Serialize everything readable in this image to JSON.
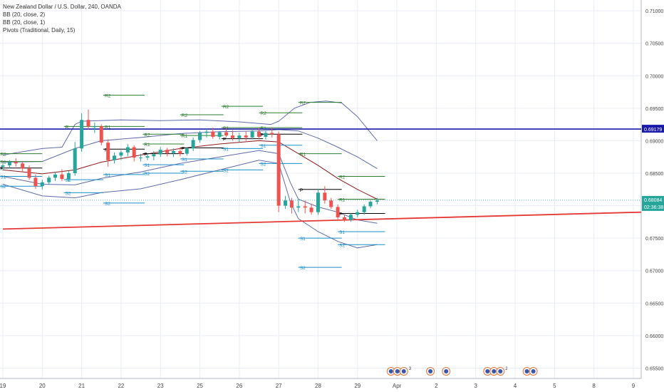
{
  "legend": {
    "title": "New Zealand Dollar / U.S. Dollar, 240, OANDA",
    "indicators": [
      "BB (20, close, 2)",
      "BB (20, close, 1)",
      "Pivots (Traditional, Daily, 15)"
    ]
  },
  "colors": {
    "up": "#26a69a",
    "down": "#ef5350",
    "bb_outer": "#2b3a8f",
    "bb_mid": "#8b1a1a",
    "grid": "#e9eef5",
    "resistance_line": "#1a1aaa",
    "trend_line": "#e53935",
    "pivot_r": "#2e7d32",
    "pivot_s": "#2e7d32",
    "pivot_p": "#000000",
    "price_label_bg": "#26a69a",
    "blue_label_bg": "#1a1aaa"
  },
  "chart_data": {
    "type": "candlestick",
    "x_ticks": [
      {
        "label": "19",
        "x": 0.0
      },
      {
        "label": "20",
        "x": 1.0
      },
      {
        "label": "21",
        "x": 2.0
      },
      {
        "label": "22",
        "x": 3.0
      },
      {
        "label": "23",
        "x": 4.0
      },
      {
        "label": "25",
        "x": 5.0
      },
      {
        "label": "26",
        "x": 6.0
      },
      {
        "label": "27",
        "x": 7.0
      },
      {
        "label": "28",
        "x": 8.0
      },
      {
        "label": "29",
        "x": 9.0
      },
      {
        "label": "Apr",
        "x": 10.0
      },
      {
        "label": "2",
        "x": 11.0
      },
      {
        "label": "3",
        "x": 12.0
      },
      {
        "label": "4",
        "x": 13.0
      },
      {
        "label": "5",
        "x": 14.0
      },
      {
        "label": "8",
        "x": 15.0
      },
      {
        "label": "9",
        "x": 16.0
      }
    ],
    "x_range": [
      0.0,
      16.2
    ],
    "y_range": [
      0.6545,
      0.711
    ],
    "y_ticks": [
      "0.71000",
      "0.70500",
      "0.70000",
      "0.69500",
      "0.69000",
      "0.68500",
      "0.68000",
      "0.67500",
      "0.67000",
      "0.66500",
      "0.66000",
      "0.65500"
    ],
    "candles": [
      {
        "x": 0.0,
        "o": 0.686,
        "h": 0.6866,
        "l": 0.6854,
        "c": 0.6862
      },
      {
        "x": 0.17,
        "o": 0.6862,
        "h": 0.687,
        "l": 0.6857,
        "c": 0.6867
      },
      {
        "x": 0.33,
        "o": 0.6867,
        "h": 0.6873,
        "l": 0.686,
        "c": 0.6865
      },
      {
        "x": 0.5,
        "o": 0.6865,
        "h": 0.6868,
        "l": 0.6852,
        "c": 0.6857
      },
      {
        "x": 0.67,
        "o": 0.6857,
        "h": 0.6862,
        "l": 0.684,
        "c": 0.6843
      },
      {
        "x": 0.83,
        "o": 0.6843,
        "h": 0.6848,
        "l": 0.6826,
        "c": 0.683
      },
      {
        "x": 1.0,
        "o": 0.683,
        "h": 0.684,
        "l": 0.6825,
        "c": 0.6836
      },
      {
        "x": 1.17,
        "o": 0.6836,
        "h": 0.6846,
        "l": 0.6832,
        "c": 0.6843
      },
      {
        "x": 1.33,
        "o": 0.6843,
        "h": 0.6852,
        "l": 0.6838,
        "c": 0.6848
      },
      {
        "x": 1.5,
        "o": 0.6848,
        "h": 0.6856,
        "l": 0.6838,
        "c": 0.6841
      },
      {
        "x": 1.67,
        "o": 0.6841,
        "h": 0.6853,
        "l": 0.6837,
        "c": 0.685
      },
      {
        "x": 1.83,
        "o": 0.685,
        "h": 0.6898,
        "l": 0.6846,
        "c": 0.6888
      },
      {
        "x": 2.0,
        "o": 0.6888,
        "h": 0.6942,
        "l": 0.6883,
        "c": 0.6932
      },
      {
        "x": 2.17,
        "o": 0.6932,
        "h": 0.6948,
        "l": 0.6917,
        "c": 0.6922
      },
      {
        "x": 2.33,
        "o": 0.6922,
        "h": 0.6928,
        "l": 0.6912,
        "c": 0.6922
      },
      {
        "x": 2.5,
        "o": 0.6922,
        "h": 0.6925,
        "l": 0.6893,
        "c": 0.6897
      },
      {
        "x": 2.67,
        "o": 0.6897,
        "h": 0.6902,
        "l": 0.686,
        "c": 0.687
      },
      {
        "x": 2.83,
        "o": 0.687,
        "h": 0.6882,
        "l": 0.6865,
        "c": 0.6877
      },
      {
        "x": 3.0,
        "o": 0.6877,
        "h": 0.6885,
        "l": 0.687,
        "c": 0.6882
      },
      {
        "x": 3.17,
        "o": 0.6882,
        "h": 0.6895,
        "l": 0.6876,
        "c": 0.689
      },
      {
        "x": 3.33,
        "o": 0.689,
        "h": 0.6893,
        "l": 0.6868,
        "c": 0.6874
      },
      {
        "x": 3.5,
        "o": 0.6874,
        "h": 0.688,
        "l": 0.6868,
        "c": 0.6874
      },
      {
        "x": 3.67,
        "o": 0.6874,
        "h": 0.688,
        "l": 0.687,
        "c": 0.6876
      },
      {
        "x": 3.83,
        "o": 0.6876,
        "h": 0.6884,
        "l": 0.687,
        "c": 0.6879
      },
      {
        "x": 4.0,
        "o": 0.6879,
        "h": 0.689,
        "l": 0.6875,
        "c": 0.6886
      },
      {
        "x": 4.17,
        "o": 0.6886,
        "h": 0.6889,
        "l": 0.6876,
        "c": 0.6881
      },
      {
        "x": 4.33,
        "o": 0.6881,
        "h": 0.6888,
        "l": 0.6875,
        "c": 0.6884
      },
      {
        "x": 4.5,
        "o": 0.6884,
        "h": 0.689,
        "l": 0.6876,
        "c": 0.688
      },
      {
        "x": 4.67,
        "o": 0.688,
        "h": 0.689,
        "l": 0.6877,
        "c": 0.6888
      },
      {
        "x": 4.83,
        "o": 0.6888,
        "h": 0.6905,
        "l": 0.6884,
        "c": 0.6901
      },
      {
        "x": 5.0,
        "o": 0.6901,
        "h": 0.6915,
        "l": 0.6897,
        "c": 0.6912
      },
      {
        "x": 5.17,
        "o": 0.6912,
        "h": 0.6918,
        "l": 0.6905,
        "c": 0.6914
      },
      {
        "x": 5.33,
        "o": 0.6914,
        "h": 0.692,
        "l": 0.6903,
        "c": 0.6906
      },
      {
        "x": 5.5,
        "o": 0.6906,
        "h": 0.6915,
        "l": 0.6902,
        "c": 0.6913
      },
      {
        "x": 5.67,
        "o": 0.6913,
        "h": 0.692,
        "l": 0.6905,
        "c": 0.6908
      },
      {
        "x": 5.83,
        "o": 0.6908,
        "h": 0.6916,
        "l": 0.69,
        "c": 0.6904
      },
      {
        "x": 6.0,
        "o": 0.6904,
        "h": 0.6912,
        "l": 0.6898,
        "c": 0.6908
      },
      {
        "x": 6.17,
        "o": 0.6908,
        "h": 0.6914,
        "l": 0.69,
        "c": 0.6905
      },
      {
        "x": 6.33,
        "o": 0.6905,
        "h": 0.6918,
        "l": 0.6902,
        "c": 0.6914
      },
      {
        "x": 6.5,
        "o": 0.6914,
        "h": 0.6919,
        "l": 0.6902,
        "c": 0.6906
      },
      {
        "x": 6.67,
        "o": 0.6906,
        "h": 0.6915,
        "l": 0.6902,
        "c": 0.6912
      },
      {
        "x": 6.83,
        "o": 0.6912,
        "h": 0.692,
        "l": 0.6905,
        "c": 0.691
      },
      {
        "x": 7.0,
        "o": 0.691,
        "h": 0.6914,
        "l": 0.679,
        "c": 0.68
      },
      {
        "x": 7.17,
        "o": 0.68,
        "h": 0.6815,
        "l": 0.6795,
        "c": 0.6808
      },
      {
        "x": 7.33,
        "o": 0.6808,
        "h": 0.6812,
        "l": 0.6788,
        "c": 0.6797
      },
      {
        "x": 7.5,
        "o": 0.6797,
        "h": 0.681,
        "l": 0.679,
        "c": 0.6799
      },
      {
        "x": 7.67,
        "o": 0.6799,
        "h": 0.6808,
        "l": 0.6788,
        "c": 0.6797
      },
      {
        "x": 7.83,
        "o": 0.6797,
        "h": 0.6803,
        "l": 0.6786,
        "c": 0.679
      },
      {
        "x": 8.0,
        "o": 0.679,
        "h": 0.6826,
        "l": 0.6786,
        "c": 0.682
      },
      {
        "x": 8.17,
        "o": 0.682,
        "h": 0.683,
        "l": 0.6803,
        "c": 0.6808
      },
      {
        "x": 8.33,
        "o": 0.6808,
        "h": 0.6812,
        "l": 0.6795,
        "c": 0.6798
      },
      {
        "x": 8.5,
        "o": 0.6798,
        "h": 0.6802,
        "l": 0.6778,
        "c": 0.6782
      },
      {
        "x": 8.67,
        "o": 0.6782,
        "h": 0.6786,
        "l": 0.6775,
        "c": 0.6778
      },
      {
        "x": 8.83,
        "o": 0.6778,
        "h": 0.6788,
        "l": 0.6775,
        "c": 0.6786
      },
      {
        "x": 9.0,
        "o": 0.6786,
        "h": 0.6794,
        "l": 0.6782,
        "c": 0.679
      },
      {
        "x": 9.17,
        "o": 0.679,
        "h": 0.6802,
        "l": 0.6786,
        "c": 0.6799
      },
      {
        "x": 9.33,
        "o": 0.6799,
        "h": 0.6808,
        "l": 0.6796,
        "c": 0.6806
      },
      {
        "x": 9.5,
        "o": 0.6806,
        "h": 0.6812,
        "l": 0.6802,
        "c": 0.6808
      }
    ],
    "bb_upper_outer": [
      [
        0.0,
        0.6878
      ],
      [
        0.5,
        0.6883
      ],
      [
        1.0,
        0.6888
      ],
      [
        1.5,
        0.689
      ],
      [
        1.83,
        0.6925
      ],
      [
        2.0,
        0.693
      ],
      [
        3.0,
        0.6932
      ],
      [
        4.0,
        0.6931
      ],
      [
        5.0,
        0.6932
      ],
      [
        6.0,
        0.6929
      ],
      [
        6.8,
        0.6925
      ],
      [
        7.0,
        0.693
      ],
      [
        7.4,
        0.695
      ],
      [
        7.8,
        0.6959
      ],
      [
        8.2,
        0.6961
      ],
      [
        8.6,
        0.6958
      ],
      [
        9.0,
        0.6937
      ],
      [
        9.5,
        0.69
      ]
    ],
    "bb_upper_inner": [
      [
        0.0,
        0.6867
      ],
      [
        1.0,
        0.6868
      ],
      [
        1.83,
        0.6888
      ],
      [
        2.5,
        0.69
      ],
      [
        3.5,
        0.6905
      ],
      [
        4.5,
        0.6911
      ],
      [
        5.5,
        0.6914
      ],
      [
        6.5,
        0.6915
      ],
      [
        7.0,
        0.6917
      ],
      [
        7.5,
        0.6915
      ],
      [
        8.0,
        0.6904
      ],
      [
        8.5,
        0.689
      ],
      [
        9.0,
        0.6875
      ],
      [
        9.5,
        0.6857
      ]
    ],
    "bb_mid": [
      [
        0.0,
        0.6855
      ],
      [
        1.0,
        0.6849
      ],
      [
        1.83,
        0.6855
      ],
      [
        2.5,
        0.6867
      ],
      [
        3.5,
        0.6878
      ],
      [
        4.5,
        0.6888
      ],
      [
        5.5,
        0.6895
      ],
      [
        6.5,
        0.69
      ],
      [
        7.0,
        0.6898
      ],
      [
        7.5,
        0.688
      ],
      [
        8.0,
        0.6862
      ],
      [
        8.5,
        0.6842
      ],
      [
        9.0,
        0.6825
      ],
      [
        9.5,
        0.681
      ]
    ],
    "bb_lower_inner": [
      [
        0.0,
        0.6845
      ],
      [
        1.0,
        0.6833
      ],
      [
        1.83,
        0.6832
      ],
      [
        2.5,
        0.6842
      ],
      [
        3.5,
        0.6852
      ],
      [
        4.5,
        0.6865
      ],
      [
        5.5,
        0.6875
      ],
      [
        6.5,
        0.6885
      ],
      [
        7.0,
        0.688
      ],
      [
        7.3,
        0.6835
      ],
      [
        7.5,
        0.681
      ],
      [
        8.0,
        0.6798
      ],
      [
        8.5,
        0.679
      ],
      [
        9.0,
        0.6778
      ],
      [
        9.5,
        0.6773
      ]
    ],
    "bb_lower_outer": [
      [
        0.0,
        0.6833
      ],
      [
        1.0,
        0.6815
      ],
      [
        1.83,
        0.6812
      ],
      [
        2.5,
        0.682
      ],
      [
        3.5,
        0.6826
      ],
      [
        4.5,
        0.684
      ],
      [
        5.5,
        0.6855
      ],
      [
        6.5,
        0.687
      ],
      [
        7.0,
        0.6865
      ],
      [
        7.3,
        0.6805
      ],
      [
        7.5,
        0.678
      ],
      [
        8.0,
        0.676
      ],
      [
        8.5,
        0.6745
      ],
      [
        9.0,
        0.6735
      ],
      [
        9.5,
        0.674
      ]
    ],
    "resistance_level": 0.69179,
    "trend_line": [
      [
        0.0,
        0.6764
      ],
      [
        16.2,
        0.679
      ]
    ],
    "pivot_sets": [
      {
        "x0": -0.1,
        "x1": 1.0,
        "levels": [
          {
            "label": "R2",
            "v": 0.688,
            "kind": "r"
          },
          {
            "label": "R1",
            "v": 0.6868,
            "kind": "r"
          },
          {
            "label": "P",
            "v": 0.6858,
            "kind": "p"
          },
          {
            "label": "S1",
            "v": 0.6845,
            "kind": "s"
          },
          {
            "label": "S2",
            "v": 0.683,
            "kind": "s"
          }
        ]
      },
      {
        "x0": 1.55,
        "x1": 2.55,
        "levels": [
          {
            "label": "R",
            "v": 0.6922,
            "kind": "r"
          },
          {
            "label": "S1",
            "v": 0.684,
            "kind": "s"
          },
          {
            "label": "S2",
            "v": 0.682,
            "kind": "s"
          }
        ]
      },
      {
        "x0": 2.55,
        "x1": 3.6,
        "levels": [
          {
            "label": "R2",
            "v": 0.697,
            "kind": "r"
          },
          {
            "label": "R1",
            "v": 0.6922,
            "kind": "r"
          },
          {
            "label": "P",
            "v": 0.6887,
            "kind": "p"
          },
          {
            "label": "S1",
            "v": 0.6848,
            "kind": "s"
          },
          {
            "label": "S2",
            "v": 0.6804,
            "kind": "s"
          }
        ]
      },
      {
        "x0": 3.55,
        "x1": 4.6,
        "levels": [
          {
            "label": "R2",
            "v": 0.691,
            "kind": "r"
          },
          {
            "label": "R1",
            "v": 0.6895,
            "kind": "r"
          },
          {
            "label": "P",
            "v": 0.688,
            "kind": "p"
          },
          {
            "label": "S1",
            "v": 0.6863,
            "kind": "s"
          },
          {
            "label": "S2",
            "v": 0.685,
            "kind": "s"
          }
        ]
      },
      {
        "x0": 4.5,
        "x1": 5.6,
        "levels": [
          {
            "label": "R2",
            "v": 0.694,
            "kind": "r"
          },
          {
            "label": "R1",
            "v": 0.6908,
            "kind": "r"
          },
          {
            "label": "P",
            "v": 0.6889,
            "kind": "p"
          },
          {
            "label": "S1",
            "v": 0.6872,
            "kind": "s"
          },
          {
            "label": "S2",
            "v": 0.6853,
            "kind": "s"
          }
        ]
      },
      {
        "x0": 5.55,
        "x1": 6.6,
        "levels": [
          {
            "label": "R2",
            "v": 0.6953,
            "kind": "r"
          },
          {
            "label": "R1",
            "v": 0.692,
            "kind": "r"
          },
          {
            "label": "P",
            "v": 0.6903,
            "kind": "p"
          },
          {
            "label": "S1",
            "v": 0.6888,
            "kind": "s"
          },
          {
            "label": "S2",
            "v": 0.6855,
            "kind": "s"
          }
        ]
      },
      {
        "x0": 6.5,
        "x1": 7.6,
        "levels": [
          {
            "label": "R2",
            "v": 0.6943,
            "kind": "r"
          },
          {
            "label": "R1",
            "v": 0.692,
            "kind": "r"
          },
          {
            "label": "P",
            "v": 0.691,
            "kind": "p"
          },
          {
            "label": "S1",
            "v": 0.6893,
            "kind": "s"
          },
          {
            "label": "S2",
            "v": 0.6865,
            "kind": "s"
          }
        ]
      },
      {
        "x0": 7.5,
        "x1": 8.6,
        "levels": [
          {
            "label": "R2",
            "v": 0.6959,
            "kind": "r"
          },
          {
            "label": "R1",
            "v": 0.688,
            "kind": "r"
          },
          {
            "label": "P",
            "v": 0.6825,
            "kind": "p"
          },
          {
            "label": "S1",
            "v": 0.675,
            "kind": "s"
          },
          {
            "label": "S2",
            "v": 0.6705,
            "kind": "s"
          }
        ]
      },
      {
        "x0": 8.5,
        "x1": 9.7,
        "levels": [
          {
            "label": "R2",
            "v": 0.6845,
            "kind": "r"
          },
          {
            "label": "R1",
            "v": 0.681,
            "kind": "r"
          },
          {
            "label": "P",
            "v": 0.6788,
            "kind": "p"
          },
          {
            "label": "S1",
            "v": 0.676,
            "kind": "s"
          },
          {
            "label": "S2",
            "v": 0.674,
            "kind": "s"
          }
        ]
      }
    ],
    "current_price": {
      "value": "0.68084",
      "countdown": "02:36:38",
      "y": 0.68084
    },
    "resistance_label": "0.69179",
    "event_groups": [
      {
        "x": 9.85,
        "count": 3,
        "badge": "3"
      },
      {
        "x": 10.85,
        "count": 1,
        "badge": ""
      },
      {
        "x": 11.25,
        "count": 1,
        "badge": ""
      },
      {
        "x": 12.3,
        "count": 3,
        "badge": "2"
      },
      {
        "x": 13.3,
        "count": 2,
        "badge": ""
      }
    ]
  }
}
